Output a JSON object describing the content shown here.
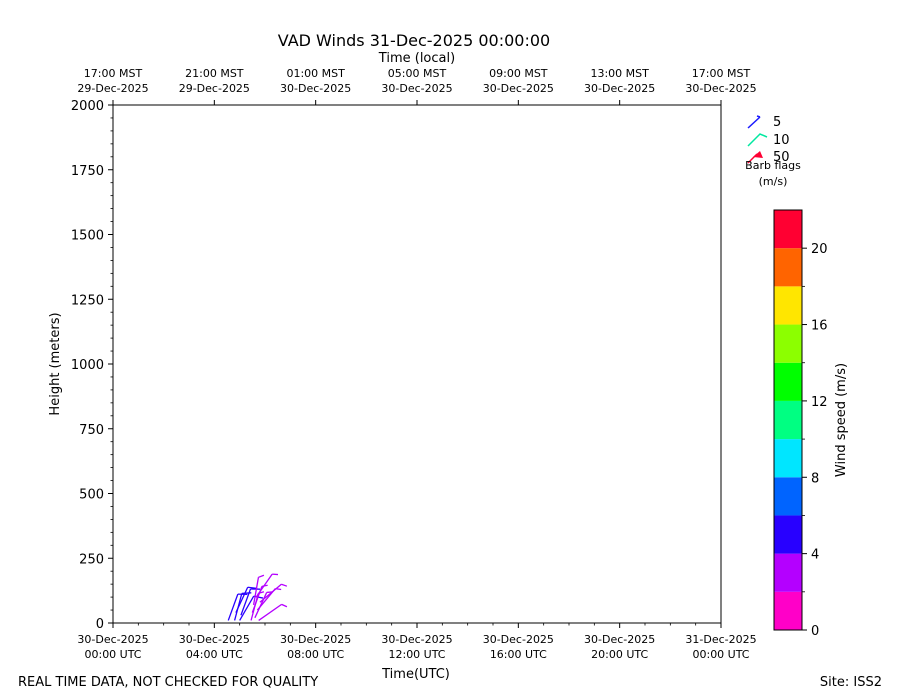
{
  "title": "VAD Winds 31-Dec-2025 00:00:00",
  "footer_left": "REAL TIME DATA, NOT CHECKED FOR QUALITY",
  "footer_right": "Site: ISS2",
  "top_axis_label": "Time (local)",
  "top_ticks": [
    {
      "line1": "17:00 MST",
      "line2": "29-Dec-2025"
    },
    {
      "line1": "21:00 MST",
      "line2": "29-Dec-2025"
    },
    {
      "line1": "01:00 MST",
      "line2": "30-Dec-2025"
    },
    {
      "line1": "05:00 MST",
      "line2": "30-Dec-2025"
    },
    {
      "line1": "09:00 MST",
      "line2": "30-Dec-2025"
    },
    {
      "line1": "13:00 MST",
      "line2": "30-Dec-2025"
    },
    {
      "line1": "17:00 MST",
      "line2": "30-Dec-2025"
    }
  ],
  "legend": {
    "title_line1": "Barb flags",
    "title_line2": "(m/s)",
    "items": [
      {
        "label": "5",
        "color": "#1a1aff"
      },
      {
        "label": "10",
        "color": "#00e8a0"
      },
      {
        "label": "50",
        "color": "#ff0033"
      }
    ]
  },
  "colorbar": {
    "label": "Wind speed (m/s)",
    "tick_labels": [
      "0",
      "4",
      "8",
      "12",
      "16",
      "20"
    ],
    "tick_values": [
      0,
      4,
      8,
      12,
      16,
      20
    ],
    "range": [
      0,
      22
    ],
    "bins": [
      {
        "from": 0,
        "to": 2,
        "color": "#ff00c8"
      },
      {
        "from": 2,
        "to": 4,
        "color": "#b400ff"
      },
      {
        "from": 4,
        "to": 6,
        "color": "#2800ff"
      },
      {
        "from": 6,
        "to": 8,
        "color": "#0064ff"
      },
      {
        "from": 8,
        "to": 10,
        "color": "#00e6ff"
      },
      {
        "from": 10,
        "to": 12,
        "color": "#00ff82"
      },
      {
        "from": 12,
        "to": 14,
        "color": "#00ff00"
      },
      {
        "from": 14,
        "to": 16,
        "color": "#8cff00"
      },
      {
        "from": 16,
        "to": 18,
        "color": "#ffe600"
      },
      {
        "from": 18,
        "to": 20,
        "color": "#ff6400"
      },
      {
        "from": 20,
        "to": 22,
        "color": "#ff0032"
      }
    ]
  },
  "chart_data": {
    "type": "scatter",
    "title": "VAD Winds 31-Dec-2025 00:00:00",
    "xlabel": "Time(UTC)",
    "ylabel": "Height (meters)",
    "xlim_hours": [
      0,
      24
    ],
    "ylim": [
      0,
      2000
    ],
    "x_ticks": [
      {
        "hours": 0,
        "line1": "30-Dec-2025",
        "line2": "00:00 UTC"
      },
      {
        "hours": 4,
        "line1": "30-Dec-2025",
        "line2": "04:00 UTC"
      },
      {
        "hours": 8,
        "line1": "30-Dec-2025",
        "line2": "08:00 UTC"
      },
      {
        "hours": 12,
        "line1": "30-Dec-2025",
        "line2": "12:00 UTC"
      },
      {
        "hours": 16,
        "line1": "30-Dec-2025",
        "line2": "16:00 UTC"
      },
      {
        "hours": 20,
        "line1": "30-Dec-2025",
        "line2": "20:00 UTC"
      },
      {
        "hours": 24,
        "line1": "31-Dec-2025",
        "line2": "00:00 UTC"
      }
    ],
    "y_ticks": [
      0,
      250,
      500,
      750,
      1000,
      1250,
      1500,
      1750,
      2000
    ],
    "barbs": [
      {
        "t": 4.55,
        "h": 10,
        "spd": 4.5,
        "dir": 200
      },
      {
        "t": 4.8,
        "h": 10,
        "spd": 4.5,
        "dir": 195
      },
      {
        "t": 4.85,
        "h": 40,
        "spd": 5.0,
        "dir": 205
      },
      {
        "t": 5.0,
        "h": 10,
        "spd": 5.0,
        "dir": 210
      },
      {
        "t": 5.05,
        "h": 30,
        "spd": 5.0,
        "dir": 200
      },
      {
        "t": 5.45,
        "h": 10,
        "spd": 3.5,
        "dir": 195
      },
      {
        "t": 5.5,
        "h": 40,
        "spd": 3.5,
        "dir": 200
      },
      {
        "t": 5.55,
        "h": 70,
        "spd": 3.0,
        "dir": 190
      },
      {
        "t": 5.6,
        "h": 20,
        "spd": 3.0,
        "dir": 205
      },
      {
        "t": 5.65,
        "h": 100,
        "spd": 3.5,
        "dir": 215
      },
      {
        "t": 5.7,
        "h": 50,
        "spd": 3.0,
        "dir": 220
      },
      {
        "t": 5.75,
        "h": 10,
        "spd": 3.5,
        "dir": 235
      },
      {
        "t": 5.8,
        "h": 80,
        "spd": 3.0,
        "dir": 230
      }
    ]
  }
}
